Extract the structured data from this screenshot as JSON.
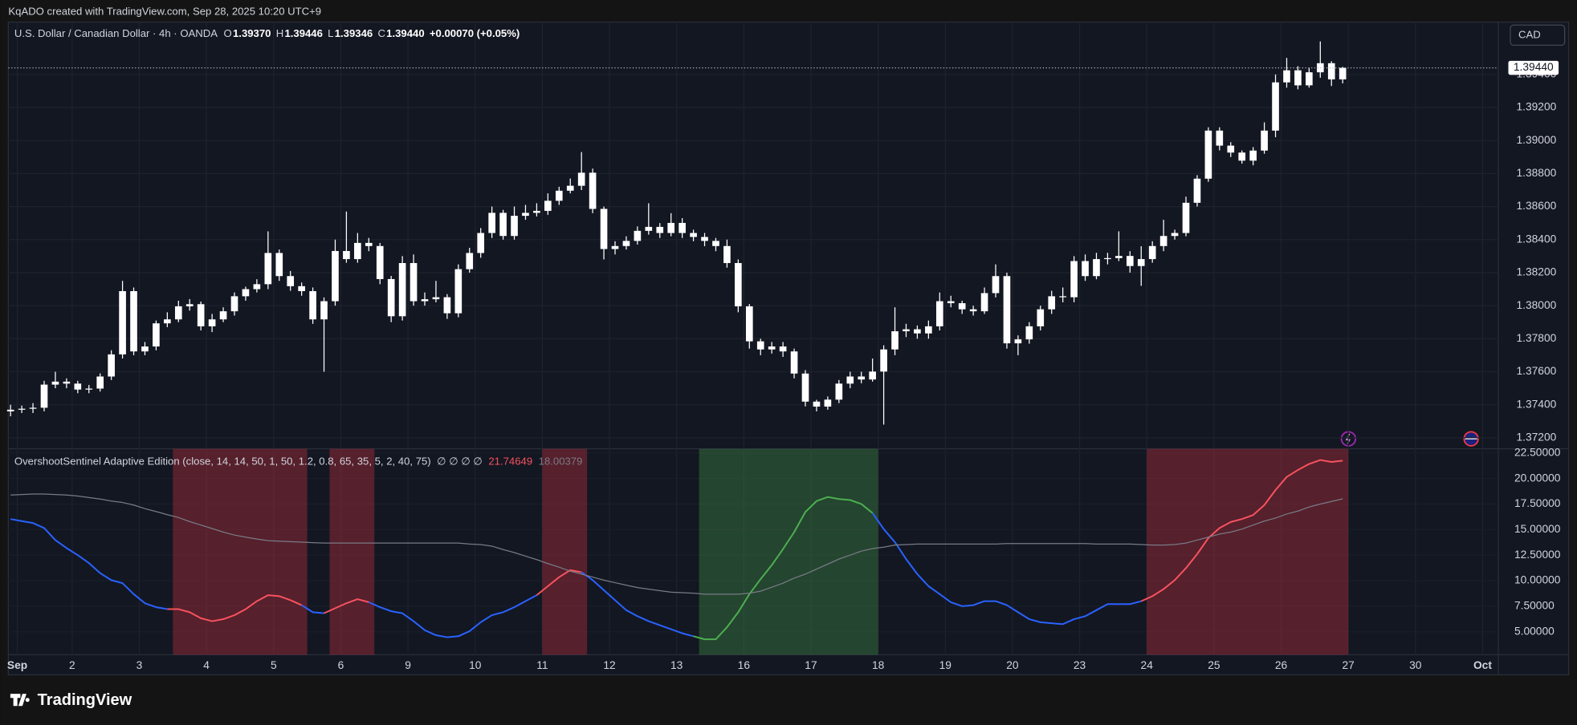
{
  "credit": "KqADO created with TradingView.com, Sep 28, 2025 10:20 UTC+9",
  "currency": "CAD",
  "brand": "TradingView",
  "chart_data": [
    {
      "type": "candlestick",
      "title": "U.S. Dollar / Canadian Dollar · 4h · OANDA",
      "ohlc_labels": [
        {
          "key": "O",
          "value": "1.39370"
        },
        {
          "key": "H",
          "value": "1.39446"
        },
        {
          "key": "L",
          "value": "1.39346"
        },
        {
          "key": "C",
          "value": "1.39440"
        }
      ],
      "change_label": "+0.00070 (+0.05%)",
      "color": "#ffffff",
      "open": [
        1.3736,
        1.3737,
        1.37376,
        1.37382,
        1.37522,
        1.3754,
        1.37528,
        1.37492,
        1.37498,
        1.37571,
        1.37705,
        1.38088,
        1.37723,
        1.37753,
        1.37893,
        1.37917,
        1.37996,
        1.38009,
        1.37875,
        1.37917,
        1.37966,
        1.38057,
        1.381,
        1.3813,
        1.38319,
        1.38179,
        1.38118,
        1.38088,
        1.37917,
        1.38027,
        1.38331,
        1.38282,
        1.3838,
        1.38361,
        1.38161,
        1.37936,
        1.38258,
        1.38027,
        1.38039,
        1.38051,
        1.37954,
        1.38221,
        1.38319,
        1.3844,
        1.38562,
        1.38422,
        1.38544,
        1.38562,
        1.38574,
        1.38635,
        1.38696,
        1.38726,
        1.38805,
        1.38586,
        1.38343,
        1.38361,
        1.38392,
        1.38453,
        1.38477,
        1.3844,
        1.38501,
        1.3844,
        1.38416,
        1.38392,
        1.38361,
        1.38258,
        1.37996,
        1.37784,
        1.37735,
        1.37753,
        1.37723,
        1.37589,
        1.37419,
        1.37389,
        1.37431,
        1.37528,
        1.37571,
        1.37553,
        1.37601,
        1.37735,
        1.37845,
        1.37857,
        1.37832,
        1.37875,
        1.38027,
        1.38015,
        1.37978,
        1.37966,
        1.38076,
        1.38179,
        1.37772,
        1.37796,
        1.37875,
        1.37978,
        1.38057,
        1.38051,
        1.3827,
        1.38179,
        1.38282,
        1.38288,
        1.38301,
        1.3824,
        1.38282,
        1.38361,
        1.38422,
        1.3844,
        1.38623,
        1.38769,
        1.3906,
        1.38969,
        1.38927,
        1.38878,
        1.38939,
        1.3906,
        1.39352,
        1.39425,
        1.39334,
        1.39413,
        1.39468,
        1.3937
      ],
      "high": [
        1.374,
        1.37395,
        1.3741,
        1.37545,
        1.376,
        1.3756,
        1.37545,
        1.3752,
        1.3759,
        1.3773,
        1.3815,
        1.3811,
        1.3778,
        1.3791,
        1.3796,
        1.3803,
        1.3804,
        1.38025,
        1.3795,
        1.3799,
        1.3808,
        1.38115,
        1.3816,
        1.3845,
        1.3834,
        1.3821,
        1.3814,
        1.3811,
        1.3805,
        1.384,
        1.3857,
        1.3844,
        1.3841,
        1.3838,
        1.3818,
        1.383,
        1.3831,
        1.3808,
        1.3815,
        1.3807,
        1.3825,
        1.3835,
        1.3847,
        1.386,
        1.3858,
        1.386,
        1.3861,
        1.3862,
        1.3868,
        1.3872,
        1.3877,
        1.3893,
        1.3883,
        1.386,
        1.3839,
        1.3842,
        1.3848,
        1.3862,
        1.385,
        1.3856,
        1.3853,
        1.3846,
        1.3844,
        1.3841,
        1.384,
        1.3828,
        1.3801,
        1.378,
        1.3778,
        1.3778,
        1.3774,
        1.3761,
        1.3743,
        1.3745,
        1.3755,
        1.376,
        1.376,
        1.3768,
        1.3776,
        1.3799,
        1.3789,
        1.3788,
        1.3791,
        1.3808,
        1.3806,
        1.3803,
        1.38,
        1.3811,
        1.3825,
        1.382,
        1.3782,
        1.379,
        1.38,
        1.3809,
        1.3811,
        1.383,
        1.3831,
        1.3832,
        1.3832,
        1.3845,
        1.3833,
        1.3836,
        1.3839,
        1.3852,
        1.3846,
        1.3866,
        1.3879,
        1.3908,
        1.3908,
        1.3899,
        1.3894,
        1.3896,
        1.3911,
        1.394,
        1.395,
        1.3945,
        1.3944,
        1.396,
        1.3948,
        1.39446
      ],
      "low": [
        1.3733,
        1.3735,
        1.3735,
        1.3736,
        1.375,
        1.375,
        1.3747,
        1.3747,
        1.3748,
        1.3755,
        1.3768,
        1.377,
        1.377,
        1.3773,
        1.3787,
        1.379,
        1.3797,
        1.3785,
        1.3784,
        1.379,
        1.3794,
        1.3803,
        1.3808,
        1.381,
        1.3815,
        1.3809,
        1.3806,
        1.3789,
        1.376,
        1.38,
        1.3826,
        1.3826,
        1.3833,
        1.3813,
        1.379,
        1.3791,
        1.38,
        1.38,
        1.3802,
        1.3792,
        1.3793,
        1.382,
        1.3829,
        1.3841,
        1.384,
        1.384,
        1.3852,
        1.3854,
        1.3855,
        1.3861,
        1.3868,
        1.387,
        1.3856,
        1.3828,
        1.3831,
        1.3834,
        1.3837,
        1.3843,
        1.3841,
        1.3842,
        1.3841,
        1.3839,
        1.3836,
        1.3833,
        1.3823,
        1.3796,
        1.3774,
        1.377,
        1.3771,
        1.3769,
        1.3756,
        1.3739,
        1.3736,
        1.3737,
        1.3741,
        1.375,
        1.3753,
        1.3754,
        1.3728,
        1.377,
        1.3781,
        1.378,
        1.378,
        1.3785,
        1.3799,
        1.3795,
        1.3794,
        1.3795,
        1.3805,
        1.3774,
        1.377,
        1.3777,
        1.3785,
        1.3795,
        1.3802,
        1.3802,
        1.3815,
        1.3816,
        1.3825,
        1.3827,
        1.382,
        1.3812,
        1.3826,
        1.3833,
        1.384,
        1.3842,
        1.386,
        1.3875,
        1.3894,
        1.389,
        1.3886,
        1.3885,
        1.3892,
        1.3902,
        1.3932,
        1.3931,
        1.3932,
        1.3938,
        1.3933,
        1.39346
      ],
      "close": [
        1.3737,
        1.37376,
        1.37382,
        1.37522,
        1.3754,
        1.37528,
        1.37492,
        1.37498,
        1.37571,
        1.37705,
        1.38088,
        1.37723,
        1.37753,
        1.37893,
        1.37917,
        1.37996,
        1.38009,
        1.37875,
        1.37917,
        1.37966,
        1.38057,
        1.381,
        1.3813,
        1.38319,
        1.38179,
        1.38118,
        1.38088,
        1.37917,
        1.38027,
        1.38331,
        1.38282,
        1.3838,
        1.38361,
        1.38161,
        1.37936,
        1.38258,
        1.38027,
        1.38039,
        1.38051,
        1.37954,
        1.38221,
        1.38319,
        1.3844,
        1.38562,
        1.38422,
        1.38544,
        1.38562,
        1.38574,
        1.38635,
        1.38696,
        1.38726,
        1.38805,
        1.38586,
        1.38343,
        1.38361,
        1.38392,
        1.38453,
        1.38477,
        1.3844,
        1.38501,
        1.3844,
        1.38416,
        1.38392,
        1.38361,
        1.38258,
        1.37996,
        1.37784,
        1.37735,
        1.37753,
        1.37723,
        1.37589,
        1.37419,
        1.37389,
        1.37431,
        1.37528,
        1.37571,
        1.37553,
        1.37601,
        1.37735,
        1.37845,
        1.37857,
        1.37832,
        1.37875,
        1.38027,
        1.38015,
        1.37978,
        1.37966,
        1.38076,
        1.38179,
        1.37772,
        1.37796,
        1.37875,
        1.37978,
        1.38057,
        1.38051,
        1.3827,
        1.38179,
        1.38282,
        1.38288,
        1.38301,
        1.3824,
        1.38282,
        1.38361,
        1.38422,
        1.3844,
        1.38623,
        1.38769,
        1.3906,
        1.38969,
        1.38927,
        1.38878,
        1.38939,
        1.3906,
        1.39352,
        1.39425,
        1.39334,
        1.39413,
        1.39468,
        1.3937,
        1.3944
      ],
      "last_price": {
        "value": 1.3944,
        "label": "1.39440"
      },
      "xlim": [
        -0.2,
        132.9
      ],
      "xticks": [
        {
          "value": 0.6,
          "label": "Sep"
        },
        {
          "value": 5.5,
          "label": "2"
        },
        {
          "value": 11.5,
          "label": "3"
        },
        {
          "value": 17.5,
          "label": "4"
        },
        {
          "value": 23.5,
          "label": "5"
        },
        {
          "value": 29.5,
          "label": "6"
        },
        {
          "value": 35.5,
          "label": "9"
        },
        {
          "value": 41.5,
          "label": "10"
        },
        {
          "value": 47.5,
          "label": "11"
        },
        {
          "value": 53.5,
          "label": "12"
        },
        {
          "value": 59.5,
          "label": "13"
        },
        {
          "value": 65.5,
          "label": "16"
        },
        {
          "value": 71.5,
          "label": "17"
        },
        {
          "value": 77.5,
          "label": "18"
        },
        {
          "value": 83.5,
          "label": "19"
        },
        {
          "value": 89.5,
          "label": "20"
        },
        {
          "value": 95.5,
          "label": "23"
        },
        {
          "value": 101.5,
          "label": "24"
        },
        {
          "value": 107.5,
          "label": "25"
        },
        {
          "value": 113.5,
          "label": "26"
        },
        {
          "value": 119.5,
          "label": "27"
        },
        {
          "value": 125.5,
          "label": "30"
        },
        {
          "value": 131.5,
          "label": "Oct"
        }
      ],
      "ylim": [
        1.37133,
        1.39717
      ],
      "yticks": [
        {
          "value": 1.372,
          "label": "1.37200"
        },
        {
          "value": 1.374,
          "label": "1.37400"
        },
        {
          "value": 1.376,
          "label": "1.37600"
        },
        {
          "value": 1.378,
          "label": "1.37800"
        },
        {
          "value": 1.38,
          "label": "1.38000"
        },
        {
          "value": 1.382,
          "label": "1.38200"
        },
        {
          "value": 1.384,
          "label": "1.38400"
        },
        {
          "value": 1.386,
          "label": "1.38600"
        },
        {
          "value": 1.388,
          "label": "1.38800"
        },
        {
          "value": 1.39,
          "label": "1.39000"
        },
        {
          "value": 1.392,
          "label": "1.39200"
        },
        {
          "value": 1.394,
          "label": "1.39400"
        }
      ],
      "grid": true
    },
    {
      "type": "line",
      "title": "OvershootSentinel Adaptive Edition (close, 14, 14, 50, 1, 50, 1.2, 0.8, 65, 35, 5, 2, 40, 75)",
      "na_label": "∅ ∅ ∅ ∅",
      "xlim": [
        -0.2,
        132.9
      ],
      "ylim": [
        2.75,
        22.9
      ],
      "yticks": [
        {
          "value": 5,
          "label": "5.00000"
        },
        {
          "value": 7.5,
          "label": "7.50000"
        },
        {
          "value": 10,
          "label": "10.00000"
        },
        {
          "value": 12.5,
          "label": "12.50000"
        },
        {
          "value": 15,
          "label": "15.00000"
        },
        {
          "value": 17.5,
          "label": "17.50000"
        },
        {
          "value": 20,
          "label": "20.00000"
        },
        {
          "value": 22.5,
          "label": "22.50000"
        }
      ],
      "zones": [
        {
          "from": 15,
          "to": 26,
          "color": "#f23645",
          "line_color": "#f7525f"
        },
        {
          "from": 29,
          "to": 32,
          "color": "#f23645",
          "line_color": "#f7525f"
        },
        {
          "from": 48,
          "to": 51,
          "color": "#f23645",
          "line_color": "#f7525f"
        },
        {
          "from": 62,
          "to": 77,
          "color": "#4caf50",
          "line_color": "#4caf50"
        },
        {
          "from": 102,
          "to": 119,
          "color": "#f23645",
          "line_color": "#f7525f"
        }
      ],
      "series": [
        {
          "color": "#2962ff",
          "last_label": "21.74649",
          "label_color": "#f7525f",
          "values": [
            16.03,
            15.83,
            15.64,
            15.15,
            13.97,
            13.19,
            12.5,
            11.72,
            10.74,
            10.05,
            9.75,
            8.68,
            7.79,
            7.4,
            7.21,
            7.21,
            6.91,
            6.32,
            6.03,
            6.23,
            6.62,
            7.21,
            7.99,
            8.58,
            8.48,
            8.09,
            7.6,
            6.91,
            6.81,
            7.3,
            7.79,
            8.19,
            7.89,
            7.4,
            7.01,
            6.81,
            6.03,
            5.15,
            4.66,
            4.46,
            4.56,
            5.05,
            5.93,
            6.62,
            6.91,
            7.4,
            7.99,
            8.58,
            9.46,
            10.34,
            11.03,
            10.83,
            10.05,
            9.07,
            8.09,
            7.11,
            6.52,
            6.03,
            5.64,
            5.25,
            4.85,
            4.56,
            4.26,
            4.26,
            5.44,
            6.91,
            8.68,
            10.15,
            11.52,
            13.09,
            14.75,
            16.72,
            17.79,
            18.19,
            17.99,
            17.89,
            17.5,
            16.62,
            15.05,
            13.77,
            12.11,
            10.64,
            9.46,
            8.68,
            7.89,
            7.5,
            7.6,
            7.99,
            7.99,
            7.6,
            6.91,
            6.23,
            5.93,
            5.83,
            5.74,
            6.23,
            6.52,
            7.11,
            7.7,
            7.7,
            7.7,
            7.99,
            8.48,
            9.17,
            10.05,
            11.23,
            12.6,
            14.17,
            15.15,
            15.74,
            16.03,
            16.42,
            17.4,
            18.87,
            20.15,
            20.83,
            21.42,
            21.81,
            21.62,
            21.74649
          ]
        },
        {
          "color": "#787b86",
          "last_label": "18.00379",
          "label_color": "#787b86",
          "values": [
            18.38,
            18.43,
            18.48,
            18.48,
            18.43,
            18.38,
            18.28,
            18.14,
            17.99,
            17.79,
            17.65,
            17.4,
            17.05,
            16.76,
            16.46,
            16.18,
            15.78,
            15.44,
            15.1,
            14.75,
            14.46,
            14.26,
            14.07,
            13.92,
            13.87,
            13.82,
            13.77,
            13.72,
            13.68,
            13.68,
            13.68,
            13.68,
            13.68,
            13.68,
            13.68,
            13.68,
            13.68,
            13.68,
            13.68,
            13.68,
            13.68,
            13.58,
            13.53,
            13.38,
            13.04,
            12.75,
            12.4,
            12.06,
            11.67,
            11.32,
            10.93,
            10.64,
            10.35,
            10.05,
            9.8,
            9.56,
            9.32,
            9.17,
            9.02,
            8.87,
            8.82,
            8.77,
            8.68,
            8.68,
            8.68,
            8.68,
            8.77,
            8.97,
            9.36,
            9.75,
            10.25,
            10.64,
            11.13,
            11.62,
            12.11,
            12.5,
            12.89,
            13.14,
            13.28,
            13.48,
            13.53,
            13.58,
            13.58,
            13.58,
            13.58,
            13.58,
            13.58,
            13.58,
            13.58,
            13.63,
            13.63,
            13.63,
            13.63,
            13.63,
            13.63,
            13.63,
            13.63,
            13.58,
            13.58,
            13.58,
            13.58,
            13.53,
            13.48,
            13.48,
            13.53,
            13.68,
            13.97,
            14.26,
            14.56,
            14.75,
            15.05,
            15.44,
            15.83,
            16.13,
            16.52,
            16.81,
            17.21,
            17.5,
            17.75,
            18.00379
          ]
        }
      ]
    }
  ]
}
